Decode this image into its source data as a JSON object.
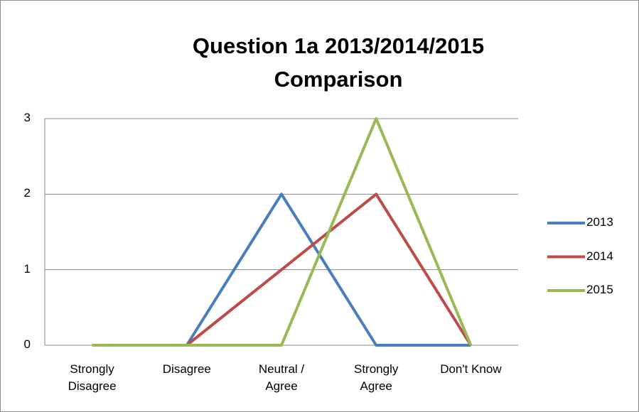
{
  "chart_data": {
    "type": "line",
    "title": "Question 1a 2013/2014/2015 Comparison",
    "categories": [
      "Strongly Disagree",
      "Disagree",
      "Neutral / Agree",
      "Strongly Agree",
      "Don't Know"
    ],
    "series": [
      {
        "name": "2013",
        "color": "#4a7ebb",
        "values": [
          0,
          0,
          2,
          0,
          0
        ]
      },
      {
        "name": "2014",
        "color": "#be4b48",
        "values": [
          0,
          0,
          1,
          2,
          0
        ]
      },
      {
        "name": "2015",
        "color": "#98b954",
        "values": [
          0,
          0,
          0,
          3,
          0
        ]
      }
    ],
    "ylim": [
      0,
      3
    ],
    "yticks": [
      0,
      1,
      2,
      3
    ],
    "grid": true,
    "legend": "right"
  }
}
